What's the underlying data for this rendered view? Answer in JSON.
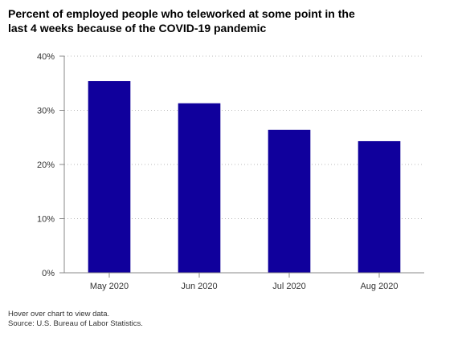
{
  "chart_data": {
    "type": "bar",
    "title": "Percent of employed people who teleworked at some point in the last 4 weeks because of the COVID-19 pandemic",
    "categories": [
      "May 2020",
      "Jun 2020",
      "Jul 2020",
      "Aug 2020"
    ],
    "values": [
      35.4,
      31.3,
      26.4,
      24.3
    ],
    "yticks": [
      "0%",
      "10%",
      "20%",
      "30%",
      "40%"
    ],
    "ytick_values": [
      0,
      10,
      20,
      30,
      40
    ],
    "ylim": [
      0,
      40
    ],
    "xlabel": "",
    "ylabel": "",
    "grid": true,
    "bar_color": "#10009c",
    "grid_color": "#bbbbbb",
    "axis_color": "#888888"
  },
  "footer": {
    "hover_note": "Hover over chart to view data.",
    "source": "Source: U.S. Bureau of Labor Statistics."
  }
}
